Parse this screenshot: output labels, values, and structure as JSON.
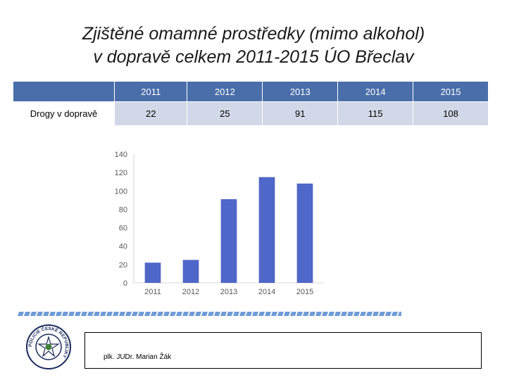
{
  "title": {
    "line1": "Zjištěné omamné prostředky (mimo alkohol)",
    "line2": "v dopravě celkem 2011-2015 ÚO Břeclav"
  },
  "table": {
    "row_label": "Drogy v dopravě",
    "headers": [
      "2011",
      "2012",
      "2013",
      "2014",
      "2015"
    ],
    "values": [
      "22",
      "25",
      "91",
      "115",
      "108"
    ]
  },
  "chart_data": {
    "type": "bar",
    "categories": [
      "2011",
      "2012",
      "2013",
      "2014",
      "2015"
    ],
    "values": [
      22,
      25,
      91,
      115,
      108
    ],
    "yticks": [
      0,
      20,
      40,
      60,
      80,
      100,
      120,
      140
    ],
    "ylim": [
      0,
      140
    ],
    "grid": false,
    "bar_color": "#4f67c8"
  },
  "logo": {
    "text": "POLICIE ČESKÉ REPUBLIKY"
  },
  "footer": {
    "author": "plk. JUDr. Marian Žák"
  }
}
